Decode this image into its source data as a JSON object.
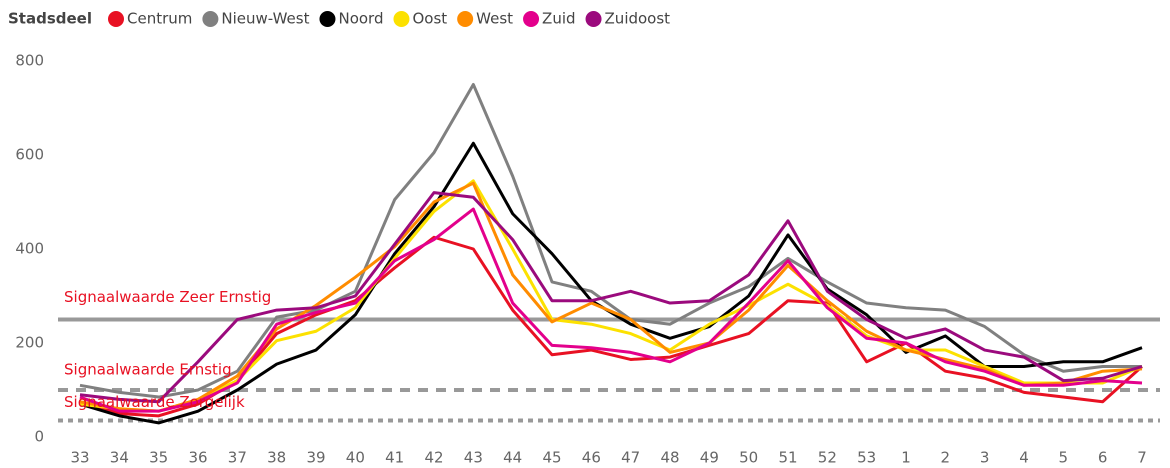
{
  "chart_data": {
    "type": "line",
    "legend_title": "Stadsdeel",
    "categories": [
      "33",
      "34",
      "35",
      "36",
      "37",
      "38",
      "39",
      "40",
      "41",
      "42",
      "43",
      "44",
      "45",
      "46",
      "47",
      "48",
      "49",
      "50",
      "51",
      "52",
      "53",
      "1",
      "2",
      "3",
      "4",
      "5",
      "6",
      "7"
    ],
    "series": [
      {
        "name": "Centrum",
        "color": "#e81123",
        "values": [
          75,
          50,
          45,
          70,
          120,
          220,
          260,
          290,
          360,
          425,
          400,
          270,
          175,
          185,
          165,
          170,
          195,
          220,
          290,
          285,
          160,
          200,
          140,
          125,
          95,
          85,
          75,
          150
        ]
      },
      {
        "name": "Nieuw-West",
        "color": "#808080",
        "values": [
          110,
          95,
          85,
          100,
          140,
          255,
          270,
          310,
          505,
          605,
          750,
          555,
          330,
          310,
          250,
          240,
          285,
          320,
          380,
          330,
          285,
          275,
          270,
          235,
          175,
          140,
          150,
          150
        ]
      },
      {
        "name": "Noord",
        "color": "#000000",
        "values": [
          70,
          45,
          30,
          55,
          100,
          155,
          185,
          260,
          390,
          490,
          625,
          475,
          390,
          290,
          240,
          210,
          235,
          300,
          430,
          315,
          260,
          180,
          215,
          150,
          150,
          160,
          160,
          190
        ]
      },
      {
        "name": "Oost",
        "color": "#fce100",
        "values": [
          70,
          60,
          55,
          80,
          120,
          205,
          225,
          275,
          380,
          480,
          545,
          400,
          250,
          240,
          220,
          185,
          240,
          280,
          325,
          280,
          215,
          185,
          185,
          150,
          115,
          115,
          115,
          150
        ]
      },
      {
        "name": "West",
        "color": "#ff8c00",
        "values": [
          75,
          60,
          55,
          80,
          130,
          230,
          280,
          340,
          405,
          500,
          540,
          345,
          245,
          285,
          250,
          180,
          200,
          270,
          365,
          290,
          225,
          185,
          165,
          145,
          110,
          115,
          140,
          145
        ]
      },
      {
        "name": "Zuid",
        "color": "#e3008c",
        "values": [
          85,
          55,
          55,
          75,
          115,
          240,
          265,
          285,
          375,
          420,
          485,
          285,
          195,
          190,
          180,
          160,
          200,
          285,
          375,
          275,
          210,
          200,
          160,
          140,
          110,
          110,
          120,
          115
        ]
      },
      {
        "name": "Zuidoost",
        "color": "#9b0a7d",
        "values": [
          90,
          80,
          75,
          160,
          250,
          270,
          275,
          300,
          410,
          520,
          510,
          420,
          290,
          290,
          310,
          285,
          290,
          345,
          460,
          310,
          250,
          210,
          230,
          185,
          170,
          120,
          125,
          150
        ]
      }
    ],
    "reference_lines": [
      {
        "label": "Signaalwaarde Zeer Ernstig",
        "value": 250,
        "style": "solid"
      },
      {
        "label": "Signaalwaarde Ernstig",
        "value": 100,
        "style": "dashed"
      },
      {
        "label": "Signaalwaarde Zorgelijk",
        "value": 35,
        "style": "dotted"
      }
    ],
    "reference_color": "#999999",
    "reference_label_color": "#e81123",
    "ylim": [
      0,
      800
    ],
    "yticks": [
      0,
      200,
      400,
      600,
      800
    ],
    "grid": false
  }
}
